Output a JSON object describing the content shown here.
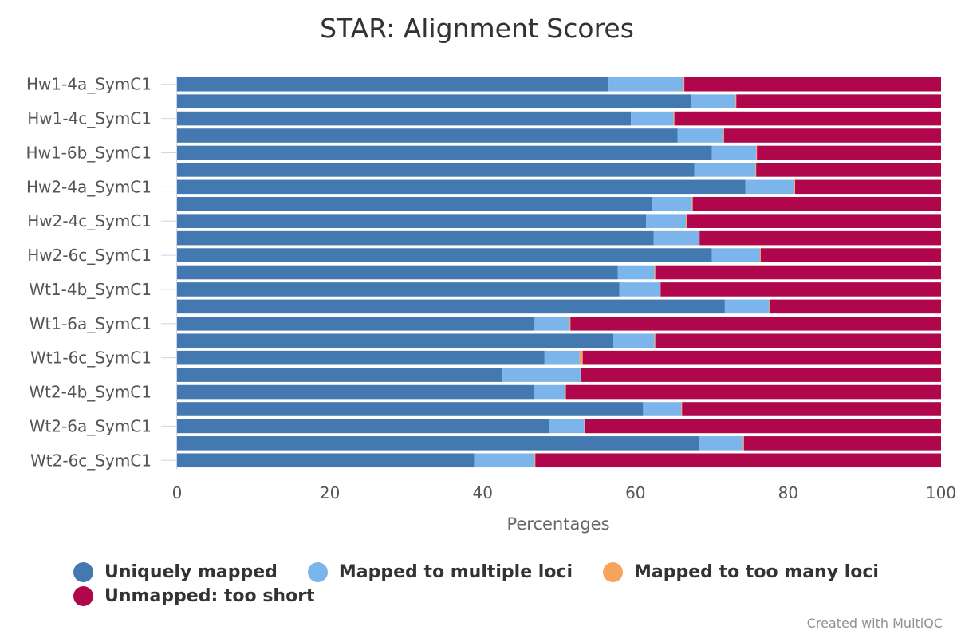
{
  "chart_data": {
    "type": "bar",
    "orientation": "horizontal",
    "stacked": "percent",
    "title": "STAR: Alignment Scores",
    "xlabel": "Percentages",
    "xlim": [
      0,
      100
    ],
    "xticks": [
      0,
      20,
      40,
      60,
      80,
      100
    ],
    "y_tick_labels": [
      "Hw1-4a_SymC1",
      "Hw1-4c_SymC1",
      "Hw1-6b_SymC1",
      "Hw2-4a_SymC1",
      "Hw2-4c_SymC1",
      "Hw2-6c_SymC1",
      "Wt1-4b_SymC1",
      "Wt1-6a_SymC1",
      "Wt1-6c_SymC1",
      "Wt2-4b_SymC1",
      "Wt2-6a_SymC1",
      "Wt2-6c_SymC1"
    ],
    "bar_count": 23,
    "legend_position": "bottom",
    "grid": false,
    "series": [
      {
        "name": "Uniquely mapped",
        "color": "#4378b0",
        "values": [
          56.5,
          67.3,
          59.4,
          65.5,
          70.0,
          67.7,
          74.4,
          62.2,
          61.4,
          62.4,
          70.0,
          57.7,
          57.9,
          71.7,
          46.8,
          57.1,
          48.1,
          42.6,
          46.8,
          61.0,
          48.7,
          68.3,
          38.9
        ]
      },
      {
        "name": "Mapped to multiple loci",
        "color": "#7cb5ec",
        "values": [
          9.8,
          5.8,
          5.6,
          6.0,
          5.8,
          8.0,
          6.4,
          5.2,
          5.2,
          5.9,
          6.3,
          4.8,
          5.3,
          5.8,
          4.6,
          5.4,
          4.6,
          10.2,
          4.0,
          5.0,
          4.6,
          5.8,
          7.9
        ]
      },
      {
        "name": "Mapped to too many loci",
        "color": "#f7a35c",
        "values": [
          0.1,
          0.1,
          0.1,
          0.1,
          0.1,
          0.1,
          0.1,
          0.1,
          0.1,
          0.1,
          0.1,
          0.1,
          0.1,
          0.1,
          0.1,
          0.1,
          0.4,
          0.1,
          0.1,
          0.1,
          0.1,
          0.1,
          0.1
        ]
      },
      {
        "name": "Unmapped: too short",
        "color": "#b0074c",
        "values": [
          33.6,
          26.8,
          34.9,
          28.4,
          24.1,
          24.2,
          19.1,
          32.5,
          33.3,
          31.6,
          23.6,
          37.4,
          36.7,
          22.4,
          48.5,
          37.4,
          46.9,
          47.1,
          49.1,
          33.9,
          46.6,
          25.8,
          53.1
        ]
      }
    ]
  },
  "credits": "Created with MultiQC"
}
